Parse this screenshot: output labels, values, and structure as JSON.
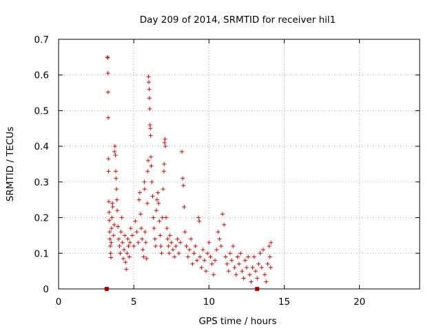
{
  "chart_data": {
    "type": "scatter",
    "title": "Day 209 of 2014, SRMTID for receiver hil1",
    "xlabel": "GPS time / hours",
    "ylabel": "SRMTID / TECUs",
    "xlim": [
      0,
      24
    ],
    "ylim": [
      0,
      0.7
    ],
    "grid": true,
    "marker": "plus",
    "color": "#e00000",
    "xticks": [
      0,
      5,
      10,
      15,
      20
    ],
    "yticks": [
      0,
      0.1,
      0.2,
      0.3,
      0.4,
      0.5,
      0.6,
      0.7
    ],
    "xtick_labels": [
      "0",
      "5",
      "10",
      "15",
      "20"
    ],
    "ytick_labels": [
      "0",
      "0.1",
      "0.2",
      "0.3",
      "0.4",
      "0.5",
      "0.6",
      "0.7"
    ],
    "zero_flags": [
      3.2,
      13.2
    ],
    "points": [
      [
        3.25,
        0.65
      ],
      [
        3.27,
        0.648
      ],
      [
        3.28,
        0.605
      ],
      [
        3.29,
        0.552
      ],
      [
        3.3,
        0.48
      ],
      [
        3.31,
        0.365
      ],
      [
        3.32,
        0.33
      ],
      [
        3.34,
        0.245
      ],
      [
        3.36,
        0.215
      ],
      [
        3.38,
        0.192
      ],
      [
        3.4,
        0.16
      ],
      [
        3.42,
        0.14
      ],
      [
        3.44,
        0.12
      ],
      [
        3.46,
        0.1
      ],
      [
        3.48,
        0.088
      ],
      [
        3.5,
        0.13
      ],
      [
        3.52,
        0.17
      ],
      [
        3.55,
        0.2
      ],
      [
        3.58,
        0.24
      ],
      [
        3.6,
        0.23
      ],
      [
        3.65,
        0.15
      ],
      [
        3.7,
        0.18
      ],
      [
        3.72,
        0.385
      ],
      [
        3.75,
        0.4
      ],
      [
        3.78,
        0.375
      ],
      [
        3.8,
        0.33
      ],
      [
        3.82,
        0.31
      ],
      [
        3.85,
        0.28
      ],
      [
        3.88,
        0.25
      ],
      [
        3.9,
        0.22
      ],
      [
        3.95,
        0.175
      ],
      [
        4.0,
        0.14
      ],
      [
        4.05,
        0.12
      ],
      [
        4.1,
        0.1
      ],
      [
        4.15,
        0.16
      ],
      [
        4.2,
        0.2
      ],
      [
        4.25,
        0.13
      ],
      [
        4.3,
        0.085
      ],
      [
        4.35,
        0.11
      ],
      [
        4.4,
        0.15
      ],
      [
        4.45,
        0.075
      ],
      [
        4.5,
        0.055
      ],
      [
        4.55,
        0.1
      ],
      [
        4.6,
        0.14
      ],
      [
        4.65,
        0.12
      ],
      [
        4.7,
        0.09
      ],
      [
        4.75,
        0.13
      ],
      [
        4.8,
        0.17
      ],
      [
        4.9,
        0.15
      ],
      [
        5.0,
        0.12
      ],
      [
        5.1,
        0.19
      ],
      [
        5.2,
        0.16
      ],
      [
        5.3,
        0.13
      ],
      [
        5.35,
        0.25
      ],
      [
        5.4,
        0.27
      ],
      [
        5.45,
        0.21
      ],
      [
        5.5,
        0.17
      ],
      [
        5.55,
        0.14
      ],
      [
        5.6,
        0.11
      ],
      [
        5.65,
        0.09
      ],
      [
        5.7,
        0.3
      ],
      [
        5.72,
        0.28
      ],
      [
        5.75,
        0.16
      ],
      [
        5.8,
        0.13
      ],
      [
        5.85,
        0.085
      ],
      [
        5.9,
        0.24
      ],
      [
        5.92,
        0.33
      ],
      [
        5.95,
        0.36
      ],
      [
        5.98,
        0.595
      ],
      [
        6.0,
        0.58
      ],
      [
        6.02,
        0.56
      ],
      [
        6.04,
        0.535
      ],
      [
        6.06,
        0.505
      ],
      [
        6.08,
        0.46
      ],
      [
        6.1,
        0.45
      ],
      [
        6.12,
        0.43
      ],
      [
        6.14,
        0.37
      ],
      [
        6.16,
        0.345
      ],
      [
        6.2,
        0.3
      ],
      [
        6.25,
        0.26
      ],
      [
        6.3,
        0.2
      ],
      [
        6.35,
        0.17
      ],
      [
        6.4,
        0.14
      ],
      [
        6.45,
        0.12
      ],
      [
        6.5,
        0.22
      ],
      [
        6.55,
        0.25
      ],
      [
        6.6,
        0.27
      ],
      [
        6.65,
        0.24
      ],
      [
        6.7,
        0.19
      ],
      [
        6.75,
        0.15
      ],
      [
        6.8,
        0.12
      ],
      [
        6.85,
        0.1
      ],
      [
        6.9,
        0.2
      ],
      [
        6.95,
        0.28
      ],
      [
        7.0,
        0.33
      ],
      [
        7.02,
        0.35
      ],
      [
        7.05,
        0.41
      ],
      [
        7.08,
        0.42
      ],
      [
        7.1,
        0.4
      ],
      [
        7.15,
        0.2
      ],
      [
        7.2,
        0.17
      ],
      [
        7.25,
        0.14
      ],
      [
        7.3,
        0.12
      ],
      [
        7.35,
        0.1
      ],
      [
        7.4,
        0.15
      ],
      [
        7.5,
        0.13
      ],
      [
        7.6,
        0.11
      ],
      [
        7.7,
        0.09
      ],
      [
        7.8,
        0.12
      ],
      [
        7.9,
        0.14
      ],
      [
        8.0,
        0.1
      ],
      [
        8.1,
        0.13
      ],
      [
        8.2,
        0.385
      ],
      [
        8.25,
        0.31
      ],
      [
        8.3,
        0.29
      ],
      [
        8.35,
        0.23
      ],
      [
        8.4,
        0.16
      ],
      [
        8.5,
        0.12
      ],
      [
        8.6,
        0.09
      ],
      [
        8.7,
        0.11
      ],
      [
        8.8,
        0.14
      ],
      [
        8.9,
        0.07
      ],
      [
        9.0,
        0.1
      ],
      [
        9.1,
        0.12
      ],
      [
        9.2,
        0.08
      ],
      [
        9.3,
        0.2
      ],
      [
        9.35,
        0.19
      ],
      [
        9.4,
        0.09
      ],
      [
        9.5,
        0.06
      ],
      [
        9.6,
        0.11
      ],
      [
        9.7,
        0.08
      ],
      [
        9.8,
        0.05
      ],
      [
        9.9,
        0.1
      ],
      [
        10.0,
        0.13
      ],
      [
        10.1,
        0.09
      ],
      [
        10.2,
        0.07
      ],
      [
        10.3,
        0.04
      ],
      [
        10.4,
        0.08
      ],
      [
        10.5,
        0.11
      ],
      [
        10.6,
        0.16
      ],
      [
        10.7,
        0.14
      ],
      [
        10.8,
        0.12
      ],
      [
        10.9,
        0.21
      ],
      [
        11.0,
        0.18
      ],
      [
        11.1,
        0.09
      ],
      [
        11.2,
        0.07
      ],
      [
        11.3,
        0.05
      ],
      [
        11.4,
        0.1
      ],
      [
        11.5,
        0.08
      ],
      [
        11.6,
        0.12
      ],
      [
        11.7,
        0.06
      ],
      [
        11.8,
        0.04
      ],
      [
        11.9,
        0.09
      ],
      [
        12.0,
        0.07
      ],
      [
        12.1,
        0.1
      ],
      [
        12.2,
        0.05
      ],
      [
        12.3,
        0.03
      ],
      [
        12.4,
        0.08
      ],
      [
        12.5,
        0.06
      ],
      [
        12.6,
        0.09
      ],
      [
        12.7,
        0.04
      ],
      [
        12.8,
        0.02
      ],
      [
        12.9,
        0.06
      ],
      [
        13.0,
        0.09
      ],
      [
        13.1,
        0.05
      ],
      [
        13.2,
        0.03
      ],
      [
        13.3,
        0.07
      ],
      [
        13.4,
        0.1
      ],
      [
        13.5,
        0.06
      ],
      [
        13.6,
        0.11
      ],
      [
        13.7,
        0.04
      ],
      [
        13.8,
        0.02
      ],
      [
        13.9,
        0.07
      ],
      [
        14.0,
        0.12
      ],
      [
        14.05,
        0.09
      ],
      [
        14.1,
        0.06
      ],
      [
        14.12,
        0.13
      ]
    ]
  }
}
